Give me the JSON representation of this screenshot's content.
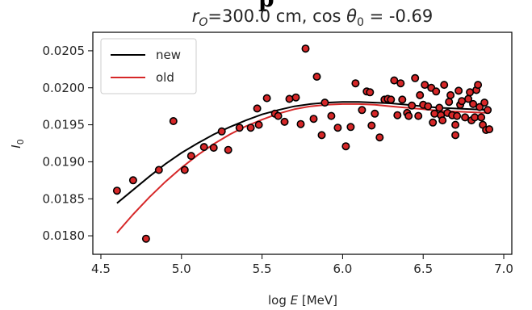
{
  "chart_data": {
    "type": "scatter",
    "title": "r_O=300.0 cm, cos θ_0 = -0.69",
    "title_parts": {
      "r_var": "r",
      "r_sub": "O",
      "r_rest": "=300.0 cm, cos ",
      "theta_var": "θ",
      "theta_sub": "0",
      "theta_rest": " = -0.69"
    },
    "xlabel": "log E [MeV]",
    "xlabel_parts": {
      "func": "log ",
      "var": "E",
      "unit": " [MeV]"
    },
    "ylabel": "I_0",
    "ylabel_parts": {
      "var": "I",
      "sub": "0"
    },
    "xlim": [
      4.45,
      7.05
    ],
    "ylim": [
      0.01775,
      0.02075
    ],
    "xticks": [
      4.5,
      5.0,
      5.5,
      6.0,
      6.5,
      7.0
    ],
    "xtick_labels": [
      "4.5",
      "5.0",
      "5.5",
      "6.0",
      "6.5",
      "7.0"
    ],
    "yticks": [
      0.018,
      0.0185,
      0.019,
      0.0195,
      0.02,
      0.0205
    ],
    "ytick_labels": [
      "0.0180",
      "0.0185",
      "0.0190",
      "0.0195",
      "0.0200",
      "0.0205"
    ],
    "grid": false,
    "legend_position": "top-left",
    "series": [
      {
        "name": "new",
        "kind": "line",
        "color": "#000000",
        "x": [
          4.6,
          4.7,
          4.8,
          4.9,
          5.0,
          5.1,
          5.2,
          5.3,
          5.4,
          5.5,
          5.6,
          5.7,
          5.8,
          5.9,
          6.0,
          6.1,
          6.2,
          6.3,
          6.4,
          6.5,
          6.6,
          6.7,
          6.8,
          6.9
        ],
        "y": [
          0.01844,
          0.01862,
          0.0188,
          0.01897,
          0.01912,
          0.01925,
          0.01937,
          0.01947,
          0.01956,
          0.01964,
          0.0197,
          0.01975,
          0.01978,
          0.0198,
          0.01981,
          0.01981,
          0.0198,
          0.01979,
          0.01977,
          0.01975,
          0.01973,
          0.01972,
          0.01971,
          0.0197
        ]
      },
      {
        "name": "old",
        "kind": "line",
        "color": "#d62728",
        "x": [
          4.6,
          4.7,
          4.8,
          4.9,
          5.0,
          5.1,
          5.2,
          5.3,
          5.4,
          5.5,
          5.6,
          5.7,
          5.8,
          5.9,
          6.0,
          6.1,
          6.2,
          6.3,
          6.4,
          6.5,
          6.6,
          6.7,
          6.8,
          6.9
        ],
        "y": [
          0.01804,
          0.01829,
          0.01852,
          0.01873,
          0.01892,
          0.01909,
          0.01924,
          0.01937,
          0.01948,
          0.01957,
          0.01965,
          0.01971,
          0.01975,
          0.01977,
          0.01978,
          0.01978,
          0.01977,
          0.01975,
          0.01973,
          0.01971,
          0.01969,
          0.01968,
          0.01967,
          0.01966
        ]
      },
      {
        "kind": "scatter",
        "color": "#d62728",
        "edge_color": "#000000",
        "points": [
          [
            4.6,
            0.01861
          ],
          [
            4.7,
            0.01875
          ],
          [
            4.78,
            0.01796
          ],
          [
            4.86,
            0.01889
          ],
          [
            4.95,
            0.01955
          ],
          [
            5.02,
            0.01889
          ],
          [
            5.06,
            0.01908
          ],
          [
            5.14,
            0.0192
          ],
          [
            5.2,
            0.01919
          ],
          [
            5.25,
            0.01941
          ],
          [
            5.29,
            0.01916
          ],
          [
            5.36,
            0.01946
          ],
          [
            5.43,
            0.01946
          ],
          [
            5.47,
            0.01972
          ],
          [
            5.48,
            0.0195
          ],
          [
            5.53,
            0.01986
          ],
          [
            5.58,
            0.01965
          ],
          [
            5.6,
            0.01962
          ],
          [
            5.64,
            0.01954
          ],
          [
            5.67,
            0.01985
          ],
          [
            5.71,
            0.01987
          ],
          [
            5.74,
            0.01951
          ],
          [
            5.77,
            0.02053
          ],
          [
            5.82,
            0.01958
          ],
          [
            5.84,
            0.02015
          ],
          [
            5.87,
            0.01936
          ],
          [
            5.89,
            0.0198
          ],
          [
            5.93,
            0.01962
          ],
          [
            5.97,
            0.01946
          ],
          [
            6.02,
            0.01921
          ],
          [
            6.05,
            0.01947
          ],
          [
            6.08,
            0.02006
          ],
          [
            6.12,
            0.0197
          ],
          [
            6.15,
            0.01995
          ],
          [
            6.17,
            0.01994
          ],
          [
            6.18,
            0.01949
          ],
          [
            6.2,
            0.01965
          ],
          [
            6.23,
            0.01933
          ],
          [
            6.26,
            0.01984
          ],
          [
            6.28,
            0.01985
          ],
          [
            6.3,
            0.01984
          ],
          [
            6.32,
            0.0201
          ],
          [
            6.34,
            0.01963
          ],
          [
            6.36,
            0.02006
          ],
          [
            6.37,
            0.01984
          ],
          [
            6.4,
            0.01966
          ],
          [
            6.41,
            0.01962
          ],
          [
            6.43,
            0.01976
          ],
          [
            6.45,
            0.02013
          ],
          [
            6.47,
            0.01962
          ],
          [
            6.48,
            0.0199
          ],
          [
            6.5,
            0.01977
          ],
          [
            6.51,
            0.02004
          ],
          [
            6.53,
            0.01975
          ],
          [
            6.55,
            0.02
          ],
          [
            6.56,
            0.01953
          ],
          [
            6.57,
            0.01965
          ],
          [
            6.58,
            0.01995
          ],
          [
            6.6,
            0.01973
          ],
          [
            6.61,
            0.01963
          ],
          [
            6.62,
            0.01956
          ],
          [
            6.63,
            0.02004
          ],
          [
            6.65,
            0.01966
          ],
          [
            6.66,
            0.01981
          ],
          [
            6.67,
            0.0199
          ],
          [
            6.68,
            0.01963
          ],
          [
            6.7,
            0.0195
          ],
          [
            6.7,
            0.01936
          ],
          [
            6.71,
            0.01962
          ],
          [
            6.72,
            0.01996
          ],
          [
            6.73,
            0.01977
          ],
          [
            6.74,
            0.01982
          ],
          [
            6.76,
            0.0196
          ],
          [
            6.78,
            0.01985
          ],
          [
            6.79,
            0.01994
          ],
          [
            6.8,
            0.01956
          ],
          [
            6.81,
            0.01978
          ],
          [
            6.82,
            0.0196
          ],
          [
            6.83,
            0.01997
          ],
          [
            6.84,
            0.02004
          ],
          [
            6.85,
            0.01974
          ],
          [
            6.86,
            0.0196
          ],
          [
            6.87,
            0.0195
          ],
          [
            6.88,
            0.0198
          ],
          [
            6.89,
            0.01943
          ],
          [
            6.9,
            0.0197
          ],
          [
            6.91,
            0.01944
          ]
        ]
      }
    ]
  }
}
